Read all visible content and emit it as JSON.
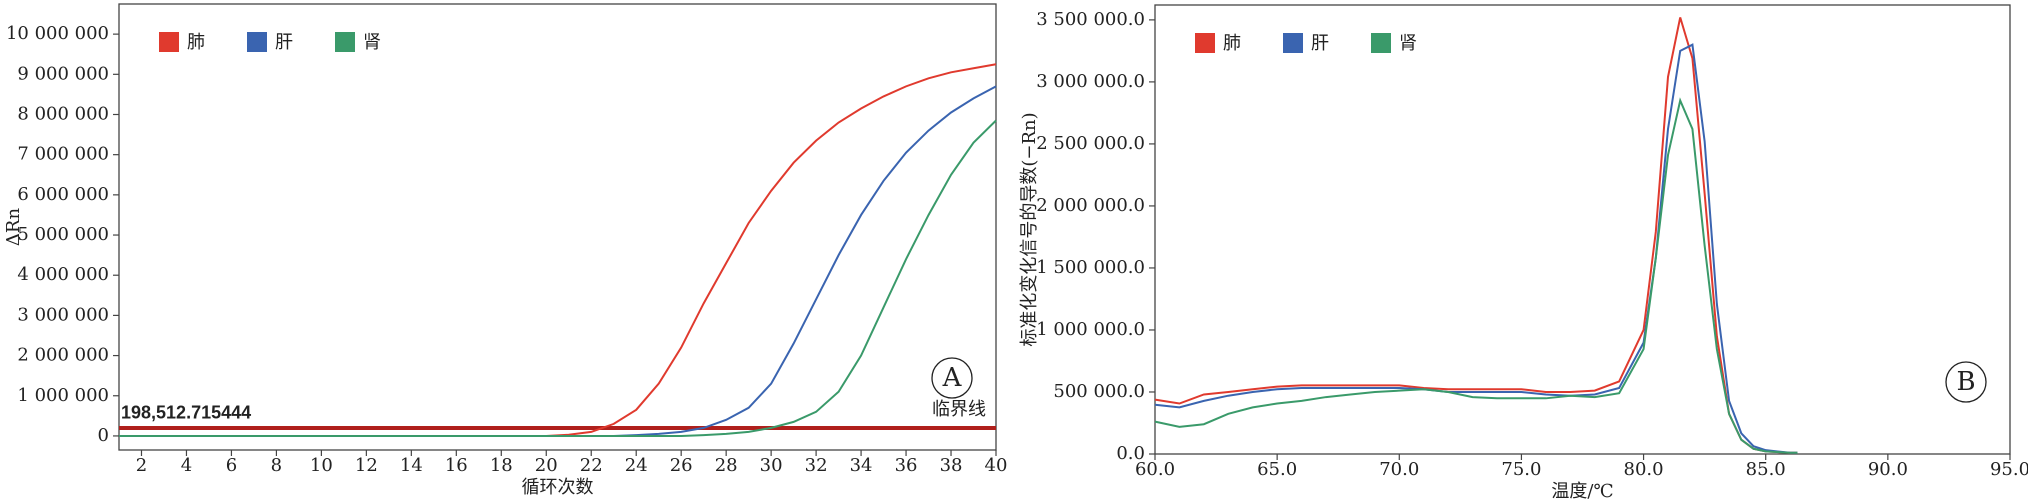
{
  "chart_data": [
    {
      "type": "line",
      "panel_label": "A",
      "x_label": "循环次数",
      "y_label": "ΔRn",
      "x": [
        1,
        2,
        3,
        4,
        5,
        6,
        7,
        8,
        9,
        10,
        11,
        12,
        13,
        14,
        15,
        16,
        17,
        18,
        19,
        20,
        21,
        22,
        23,
        24,
        25,
        26,
        27,
        28,
        29,
        30,
        31,
        32,
        33,
        34,
        35,
        36,
        37,
        38,
        39,
        40
      ],
      "series": [
        {
          "name": "肺",
          "color": "#e03a2e",
          "values": [
            0,
            0,
            0,
            0,
            0,
            0,
            0,
            0,
            0,
            0,
            0,
            0,
            0,
            0,
            0,
            0,
            0,
            0,
            0,
            0,
            30000,
            100000,
            300000,
            650000,
            1300000,
            2200000,
            3300000,
            4300000,
            5300000,
            6100000,
            6800000,
            7350000,
            7800000,
            8150000,
            8450000,
            8700000,
            8900000,
            9050000,
            9150000,
            9250000
          ]
        },
        {
          "name": "肝",
          "color": "#3a64b0",
          "values": [
            0,
            0,
            0,
            0,
            0,
            0,
            0,
            0,
            0,
            0,
            0,
            0,
            0,
            0,
            0,
            0,
            0,
            0,
            0,
            0,
            0,
            0,
            0,
            20000,
            50000,
            100000,
            200000,
            400000,
            700000,
            1300000,
            2300000,
            3400000,
            4500000,
            5500000,
            6350000,
            7050000,
            7600000,
            8050000,
            8400000,
            8700000
          ]
        },
        {
          "name": "肾",
          "color": "#3a9a6a",
          "values": [
            0,
            0,
            0,
            0,
            0,
            0,
            0,
            0,
            0,
            0,
            0,
            0,
            0,
            0,
            0,
            0,
            0,
            0,
            0,
            0,
            0,
            0,
            0,
            0,
            0,
            0,
            20000,
            50000,
            100000,
            200000,
            350000,
            600000,
            1100000,
            2000000,
            3200000,
            4400000,
            5500000,
            6500000,
            7300000,
            7850000
          ]
        }
      ],
      "threshold": {
        "value": 198512.715444,
        "label": "198,512.715444"
      },
      "threshold_name": "临界线",
      "threshold_color": "#b0201c",
      "xlim": [
        1,
        40
      ],
      "xticks": [
        2,
        4,
        6,
        8,
        10,
        12,
        14,
        16,
        18,
        20,
        22,
        24,
        26,
        28,
        30,
        32,
        34,
        36,
        38,
        40
      ],
      "ylim": [
        -350000,
        10750000
      ],
      "yticks": [
        {
          "value": 0,
          "label": "0"
        },
        {
          "value": 1000000,
          "label": "1 000 000"
        },
        {
          "value": 2000000,
          "label": "2 000 000"
        },
        {
          "value": 3000000,
          "label": "3 000 000"
        },
        {
          "value": 4000000,
          "label": "4 000 000"
        },
        {
          "value": 5000000,
          "label": "5 000 000"
        },
        {
          "value": 6000000,
          "label": "6 000 000"
        },
        {
          "value": 7000000,
          "label": "7 000 000"
        },
        {
          "value": 8000000,
          "label": "8 000 000"
        },
        {
          "value": 9000000,
          "label": "9 000 000"
        },
        {
          "value": 10000000,
          "label": "10 000 000"
        }
      ]
    },
    {
      "type": "line",
      "panel_label": "B",
      "x_label": "温度/℃",
      "y_label": "标准化变化信号的导数(−Rn)",
      "x": [
        60,
        61,
        62,
        63,
        64,
        65,
        66,
        67,
        68,
        69,
        70,
        71,
        72,
        73,
        74,
        75,
        76,
        77,
        78,
        79,
        80,
        80.5,
        81,
        81.5,
        82,
        82.5,
        83,
        83.5,
        84,
        84.5,
        85,
        86,
        86.3
      ],
      "series": [
        {
          "name": "肺",
          "color": "#e03a2e",
          "values": [
            438000,
            407000,
            480000,
            500000,
            522000,
            543000,
            553000,
            553000,
            553000,
            553000,
            553000,
            532000,
            522000,
            522000,
            522000,
            522000,
            500000,
            500000,
            511000,
            585000,
            1000000,
            1790000,
            3040000,
            3520000,
            3190000,
            2100000,
            950000,
            324000,
            115000,
            42000,
            21000,
            10000,
            10000
          ]
        },
        {
          "name": "肝",
          "color": "#3a64b0",
          "values": [
            397000,
            376000,
            428000,
            470000,
            500000,
            522000,
            532000,
            532000,
            532000,
            532000,
            532000,
            522000,
            500000,
            500000,
            500000,
            500000,
            480000,
            470000,
            480000,
            532000,
            898000,
            1580000,
            2620000,
            3250000,
            3300000,
            2520000,
            1210000,
            428000,
            167000,
            63000,
            31000,
            10000,
            10000
          ]
        },
        {
          "name": "肾",
          "color": "#3a9a6a",
          "values": [
            261000,
            219000,
            240000,
            324000,
            376000,
            407000,
            428000,
            459000,
            480000,
            500000,
            511000,
            522000,
            500000,
            459000,
            449000,
            449000,
            449000,
            470000,
            459000,
            490000,
            846000,
            1580000,
            2410000,
            2850000,
            2620000,
            1680000,
            846000,
            324000,
            115000,
            42000,
            21000,
            10000,
            10000
          ]
        }
      ],
      "xlim": [
        60,
        95
      ],
      "xticks": [
        {
          "value": 60,
          "label": "60.0"
        },
        {
          "value": 65,
          "label": "65.0"
        },
        {
          "value": 70,
          "label": "70.0"
        },
        {
          "value": 75,
          "label": "75.0"
        },
        {
          "value": 80,
          "label": "80.0"
        },
        {
          "value": 85,
          "label": "85.0"
        },
        {
          "value": 90,
          "label": "90.0"
        },
        {
          "value": 95,
          "label": "95.0"
        }
      ],
      "ylim": [
        0,
        3620000
      ],
      "yticks": [
        {
          "value": 0,
          "label": "0.0"
        },
        {
          "value": 500000,
          "label": "500 000.0"
        },
        {
          "value": 1000000,
          "label": "1 000 000.0"
        },
        {
          "value": 1500000,
          "label": "1 500 000.0"
        },
        {
          "value": 2000000,
          "label": "2 000 000.0"
        },
        {
          "value": 2500000,
          "label": "2 500 000.0"
        },
        {
          "value": 3000000,
          "label": "3 000 000.0"
        },
        {
          "value": 3500000,
          "label": "3 500 000.0"
        }
      ]
    }
  ]
}
